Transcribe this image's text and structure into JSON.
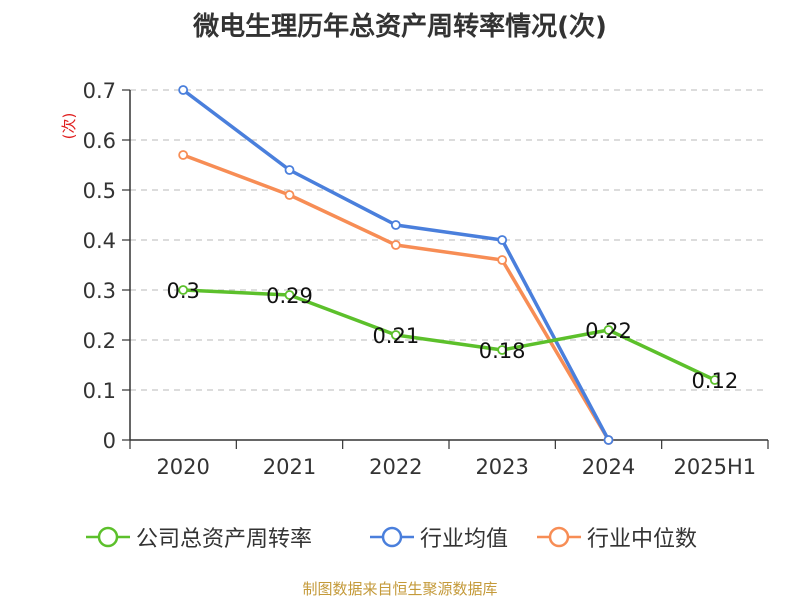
{
  "title": "微电生理历年总资产周转率情况(次)",
  "source": "制图数据来自恒生聚源数据库",
  "chart_data": {
    "type": "line",
    "title": "微电生理历年总资产周转率情况(次)",
    "ylabel": "(次)",
    "xlabel": "",
    "ylim": [
      0,
      0.7
    ],
    "yticks": [
      "0",
      "0.1",
      "0.2",
      "0.3",
      "0.4",
      "0.5",
      "0.6",
      "0.7"
    ],
    "grid": true,
    "legend_position": "bottom",
    "categories": [
      "2020",
      "2021",
      "2022",
      "2023",
      "2024",
      "2025H1"
    ],
    "series": [
      {
        "name": "公司总资产周转率",
        "color": "#5cc02b",
        "values": [
          0.3,
          0.29,
          0.21,
          0.18,
          0.22,
          0.12
        ],
        "labels": [
          "0.3",
          "0.29",
          "0.21",
          "0.18",
          "0.22",
          "0.12"
        ],
        "show_labels": true
      },
      {
        "name": "行业均值",
        "color": "#4a7fdc",
        "values": [
          0.7,
          0.54,
          0.43,
          0.4,
          0.0,
          null
        ],
        "show_labels": false
      },
      {
        "name": "行业中位数",
        "color": "#f78d55",
        "values": [
          0.57,
          0.49,
          0.39,
          0.36,
          0.0,
          null
        ],
        "show_labels": false
      }
    ]
  }
}
